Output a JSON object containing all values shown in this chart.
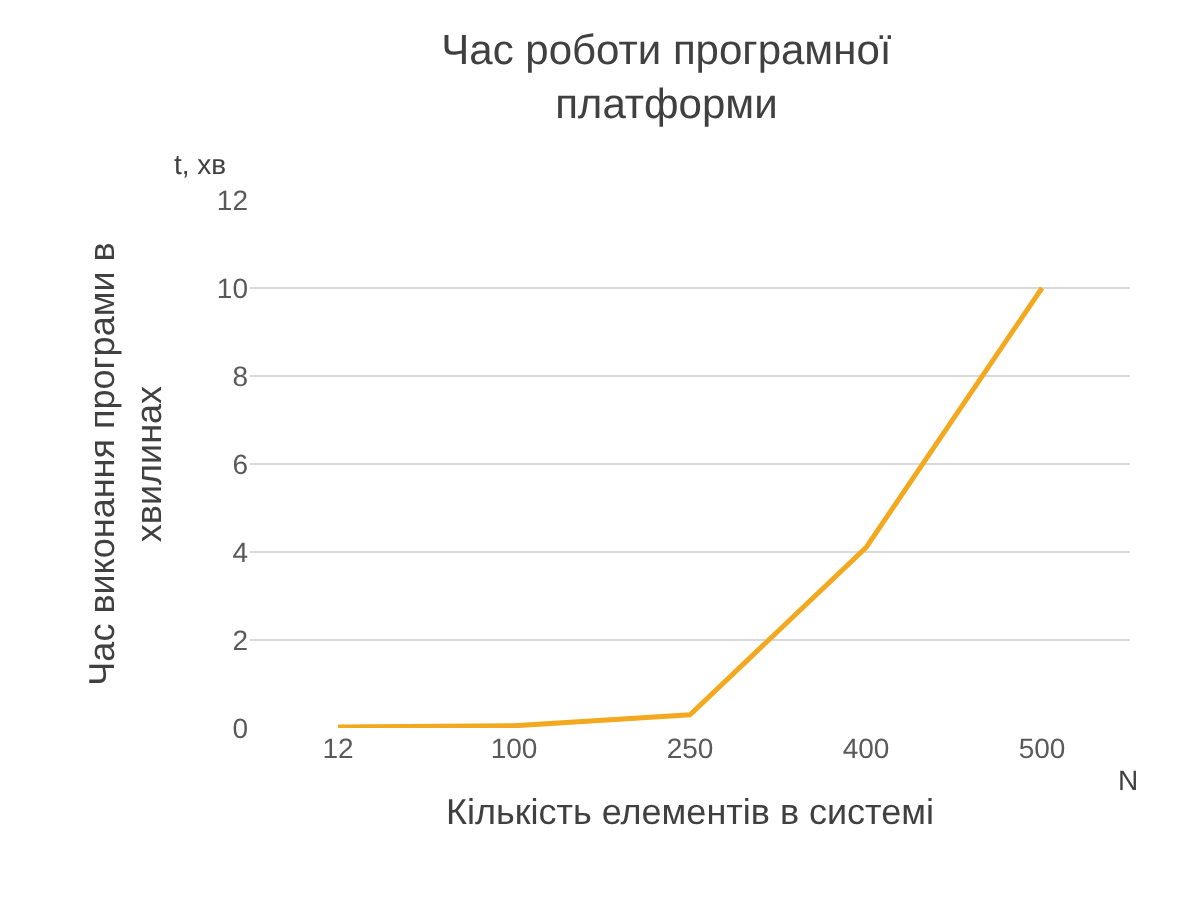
{
  "chart_data": {
    "type": "line",
    "title": "Час роботи програмної\nплатформи",
    "xlabel": "Кількість елементів в системі",
    "ylabel": "Час виконання програми в\nхвилинах",
    "categories": [
      "12",
      "100",
      "250",
      "400",
      "500"
    ],
    "series": [
      {
        "color": "#f2a91f",
        "values": [
          0.02,
          0.05,
          0.3,
          4.1,
          10
        ]
      }
    ],
    "ylim": [
      0,
      12
    ],
    "yticks": [
      0,
      2,
      4,
      6,
      8,
      10,
      12
    ],
    "grid": "y",
    "marker": "none",
    "line_style": "solid",
    "annotations": [
      "t, хв",
      "N"
    ]
  }
}
